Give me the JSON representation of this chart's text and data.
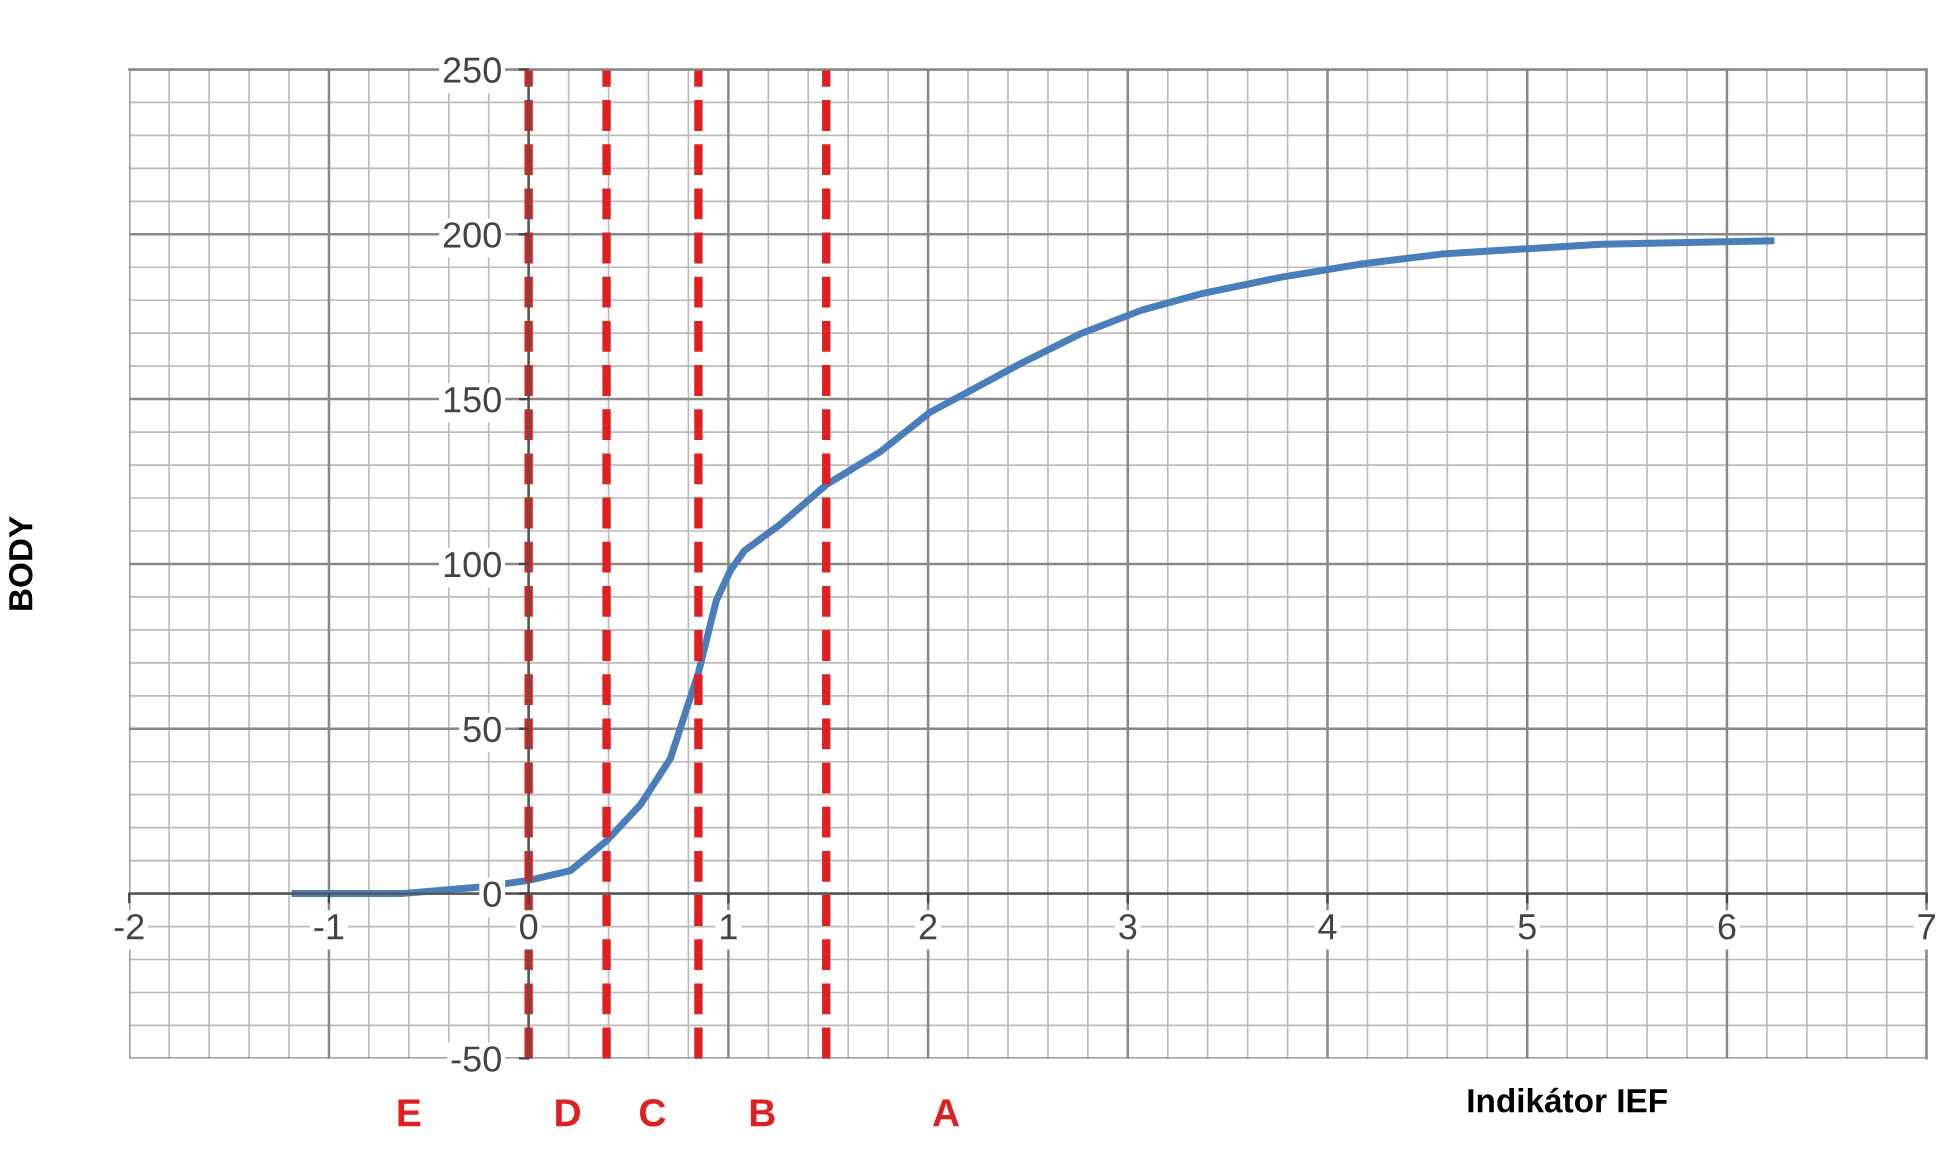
{
  "chart_data": {
    "type": "line",
    "xlabel": "Indikátor IEF",
    "ylabel": "BODY",
    "series": [
      {
        "color": "#4a7ebb",
        "x": [
          -1.17,
          -0.64,
          -0.24,
          0,
          0.21,
          0.39,
          0.56,
          0.71,
          0.85,
          0.94,
          1.01,
          1.08,
          1.26,
          1.49,
          1.76,
          2.01,
          2.47,
          2.77,
          3.07,
          3.37,
          3.77,
          4.17,
          4.57,
          5.37,
          6.22
        ],
        "values": [
          0,
          0,
          2,
          4,
          7,
          16,
          27,
          41,
          67,
          89,
          98,
          104,
          112,
          124,
          134,
          146,
          161,
          170,
          177,
          182,
          187,
          191,
          194,
          197,
          198
        ]
      }
    ],
    "xlim": [
      -2,
      7
    ],
    "xticks": [
      -2,
      -1,
      0,
      1,
      2,
      3,
      4,
      5,
      6,
      7
    ],
    "ylim": [
      -50,
      250
    ],
    "yticks": [
      -50,
      0,
      50,
      100,
      150,
      200,
      250
    ],
    "grid": true,
    "marker": "none",
    "line_style": "solid",
    "ref_lines": [
      {
        "axis": "x",
        "value": 0,
        "color": "#e02020",
        "line_style": "dashed"
      },
      {
        "axis": "x",
        "value": 0.39,
        "color": "#e02020",
        "line_style": "dashed"
      },
      {
        "axis": "x",
        "value": 0.85,
        "color": "#e02020",
        "line_style": "dashed"
      },
      {
        "axis": "x",
        "value": 1.49,
        "color": "#e02020",
        "line_style": "dashed"
      }
    ],
    "annotations": [
      "E",
      "D",
      "C",
      "B",
      "A"
    ]
  }
}
